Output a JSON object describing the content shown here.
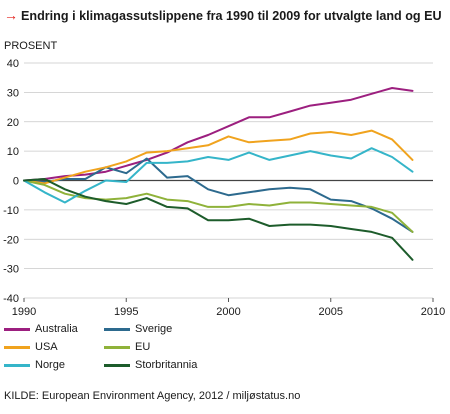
{
  "header": {
    "arrow": "→",
    "title": "Endring i klimagassutslippene fra 1990 til 2009 for utvalgte land og EU",
    "unit": "PROSENT"
  },
  "colors": {
    "accent_arrow": "#e3201b",
    "grid": "#c8c8c8",
    "axis": "#555555"
  },
  "chart_data": {
    "type": "line",
    "title": "Endring i klimagassutslippene fra 1990 til 2009 for utvalgte land og EU",
    "ylabel": "PROSENT",
    "xlabel": "",
    "xlim": [
      1990,
      2010
    ],
    "ylim": [
      -40,
      40
    ],
    "x_ticks": [
      1990,
      1995,
      2000,
      2005,
      2010
    ],
    "y_ticks": [
      40,
      30,
      20,
      10,
      0,
      -10,
      -20,
      -30,
      -40
    ],
    "grid": "horizontal",
    "legend_position": "bottom",
    "x": [
      1990,
      1991,
      1992,
      1993,
      1994,
      1995,
      1996,
      1997,
      1998,
      1999,
      2000,
      2001,
      2002,
      2003,
      2004,
      2005,
      2006,
      2007,
      2008,
      2009
    ],
    "series": [
      {
        "name": "Australia",
        "color": "#9c1f7f",
        "values": [
          0,
          0.5,
          1.5,
          2,
          3,
          5,
          7,
          9.5,
          13,
          15.5,
          18.5,
          21.5,
          21.5,
          23.5,
          25.5,
          26.5,
          27.5,
          29.5,
          31.5,
          30.5
        ]
      },
      {
        "name": "Sverige",
        "color": "#2d6a8e",
        "values": [
          0,
          -0.5,
          0.5,
          0.5,
          4.5,
          2.5,
          7.5,
          1,
          1.5,
          -3,
          -5,
          -4,
          -3,
          -2.5,
          -3,
          -6.5,
          -7,
          -9.5,
          -13,
          -17.5
        ]
      },
      {
        "name": "USA",
        "color": "#f0a31e",
        "values": [
          0,
          -1,
          1,
          3,
          4.5,
          6.5,
          9.5,
          10,
          11,
          12,
          15,
          13,
          13.5,
          14,
          16,
          16.5,
          15.5,
          17,
          14,
          7
        ]
      },
      {
        "name": "EU",
        "color": "#8fb23a",
        "values": [
          0,
          -1.5,
          -4.5,
          -6,
          -6.5,
          -6,
          -4.5,
          -6.5,
          -7,
          -9,
          -9,
          -8,
          -8.5,
          -7.5,
          -7.5,
          -8,
          -8.5,
          -9,
          -11,
          -17.5
        ]
      },
      {
        "name": "Norge",
        "color": "#35b5c9",
        "values": [
          0,
          -4,
          -7.5,
          -3.5,
          0,
          -0.5,
          6,
          6,
          6.5,
          8,
          7,
          9.5,
          7,
          8.5,
          10,
          8.5,
          7.5,
          11,
          8,
          3
        ]
      },
      {
        "name": "Storbritannia",
        "color": "#1d5c2b",
        "values": [
          0,
          0.5,
          -3,
          -5.5,
          -7,
          -8,
          -6,
          -9,
          -9.5,
          -13.5,
          -13.5,
          -13,
          -15.5,
          -15,
          -15,
          -15.5,
          -16.5,
          -17.5,
          -19.5,
          -27
        ]
      }
    ]
  },
  "source": "KILDE: European Environment Agency, 2012 / miljøstatus.no"
}
